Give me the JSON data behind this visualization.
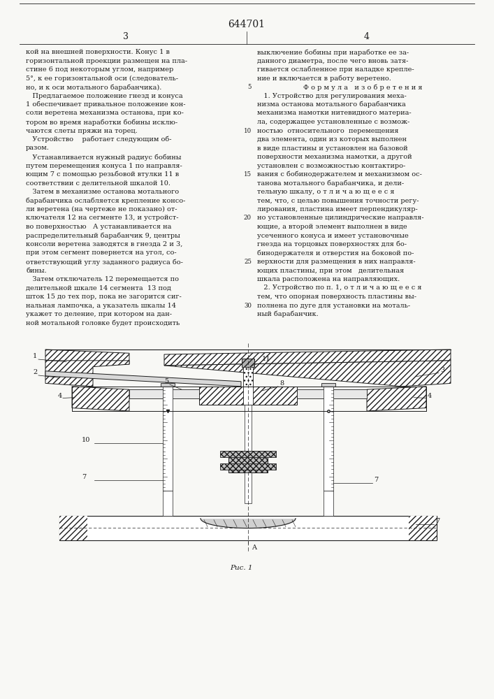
{
  "patent_number": "644701",
  "page_left": "3",
  "page_right": "4",
  "col1_lines": [
    "кой на внешней поверхности. Конус 1 в",
    "горизонтальной проекции размещен на пла-",
    "стине 6 под некоторым углом, например",
    "5°, к ее горизонтальной оси (следователь-",
    "но, и к оси мотального барабанчика).",
    "   Предлагаемое положение гнезд и конуса",
    "1 обеспечивает привальное положение кон-",
    "соли веретена механизма останова, при ко-",
    "тором во время наработки бобины исклю-",
    "чаются слеты пряжи на торец.",
    "   Устройство    работает следующим об-",
    "разом.",
    "   Устанавливается нужный радиус бобины",
    "путем перемещения конуса 1 по направля-",
    "ющим 7 с помощью резьбовой втулки 11 в",
    "соответствии с делительной шкалой 10.",
    "   Затем в механизме останова мотального",
    "барабанчика ослабляется крепление консо-",
    "ли веретена (на чертеже не показано) от-",
    "ключателя 12 на сегменте 13, и устройст-",
    "во поверхностью   А устанавливается на",
    "распределительный барабанчик 9, центры",
    "консоли веретена заводятся в гнезда 2 и 3,",
    "при этом сегмент повернется на угол, со-",
    "ответствующий углу заданного радиуса бо-",
    "бины.",
    "   Затем отключатель 12 перемещается по",
    "делительной шкале 14 сегмента  13 под",
    "шток 15 до тех пор, пока не загорится сиг-",
    "нальная лампочка, а указатель шкалы 14",
    "укажет то деление, при котором на дан-",
    "ной мотальной головке будет происходить"
  ],
  "col2_lines": [
    "выключение бобины при наработке ее за-",
    "данного диаметра, после чего вновь затя-",
    "гивается ослабленное при наладке крепле-",
    "ние и включается в работу веретено.",
    "   Ф о р м у л а   и з о б р е т е н и я",
    "   1. Устройство для регулирования меха-",
    "низма останова мотального барабанчика",
    "механизма намотки нитевидного материа-",
    "ла, содержащее установленные с возмож-",
    "ностью  относительного  перемещения",
    "два элемента, один из которых выполнен",
    "в виде пластины и установлен на базовой",
    "поверхности механизма намотки, а другой",
    "установлен с возможностью контактиро-",
    "вания с бобинодержателем и механизмом ос-",
    "танова мотального барабанчика, и дели-",
    "тельную шкалу, о т л и ч а ю щ е е с я",
    "тем, что, с целью повышения точности регу-",
    "лирования, пластина имеет перпендикуляр-",
    "но установленные цилиндрические направля-",
    "ющие, а второй элемент выполнен в виде",
    "усеченного конуса и имеет установочные",
    "гнезда на торцовых поверхностях для бо-",
    "бинодержателя и отверстия на боковой по-",
    "верхности для размещения в них направля-",
    "ющих пластины, при этом   делительная",
    "шкала расположена на направляющих.",
    "   2. Устройство по п. 1, о т л и ч а ю щ е е с я",
    "тем, что опорная поверхность пластины вы-",
    "полнена по дуге для установки на мотaль-",
    "ный барабанчик."
  ],
  "line_numbers": {
    "4": "5",
    "9": "10",
    "14": "15",
    "19": "20",
    "24": "25",
    "29": "30"
  },
  "fig_caption": "Рис. 1",
  "bg_color": "#f8f8f5",
  "text_color": "#1c1c1c",
  "line_color": "#1c1c1c"
}
